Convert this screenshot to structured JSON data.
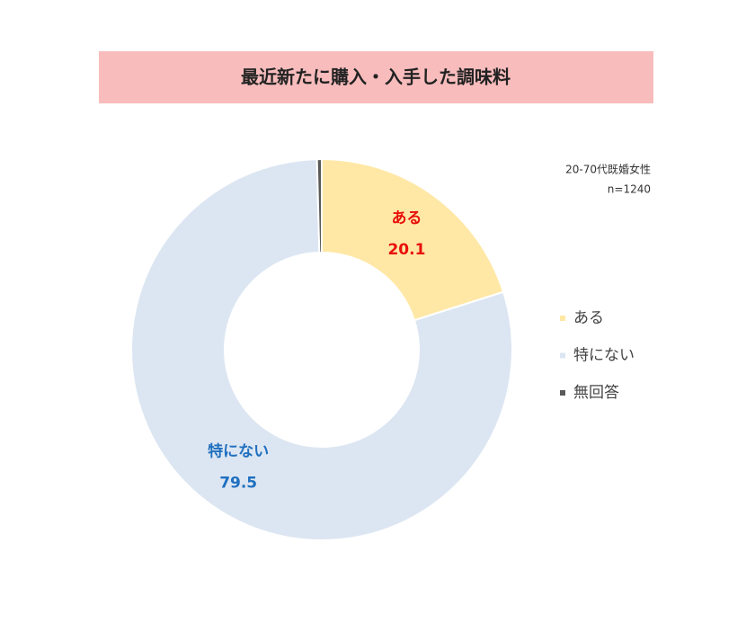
{
  "chart_data": {
    "type": "donut",
    "title": "最近新たに購入・入手した調味料",
    "annotations": [
      "20-70代既婚女性",
      "n=1240"
    ],
    "categories": [
      "ある",
      "特にない",
      "無回答"
    ],
    "values": [
      20.1,
      79.5,
      0.4
    ],
    "colors": [
      "#ffe8a6",
      "#dce6f2",
      "#595959"
    ],
    "value_label_colors": [
      "#e8100a",
      "#1f6fbf",
      "#595959"
    ],
    "legend": "right"
  }
}
